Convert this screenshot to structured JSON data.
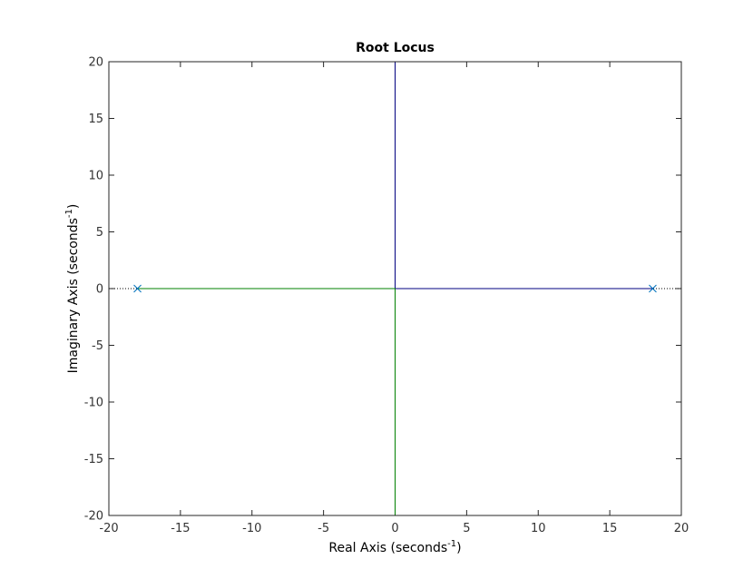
{
  "chart_data": {
    "type": "line",
    "title": "Root Locus",
    "xlabel": {
      "text": "Real Axis (seconds",
      "sup": "-1",
      "tail": ")"
    },
    "ylabel": {
      "text": "Imaginary Axis (seconds",
      "sup": "-1",
      "tail": ")"
    },
    "xlim": [
      -20,
      20
    ],
    "ylim": [
      -20,
      20
    ],
    "xticks": [
      -20,
      -15,
      -10,
      -5,
      0,
      5,
      10,
      15,
      20
    ],
    "yticks": [
      -20,
      -15,
      -10,
      -5,
      0,
      5,
      10,
      15,
      20
    ],
    "grid": false,
    "series": [
      {
        "color": "#000080",
        "points": [
          [
            18,
            0
          ],
          [
            0,
            0
          ],
          [
            0,
            20
          ]
        ]
      },
      {
        "color": "#008000",
        "points": [
          [
            -18,
            0
          ],
          [
            0,
            0
          ],
          [
            0,
            -20
          ]
        ]
      }
    ],
    "poles": [
      [
        -18,
        0
      ],
      [
        18,
        0
      ]
    ],
    "pole_color": "#0072BD",
    "reference_line": {
      "y": 0,
      "style": "dotted",
      "color": "#000000"
    }
  }
}
